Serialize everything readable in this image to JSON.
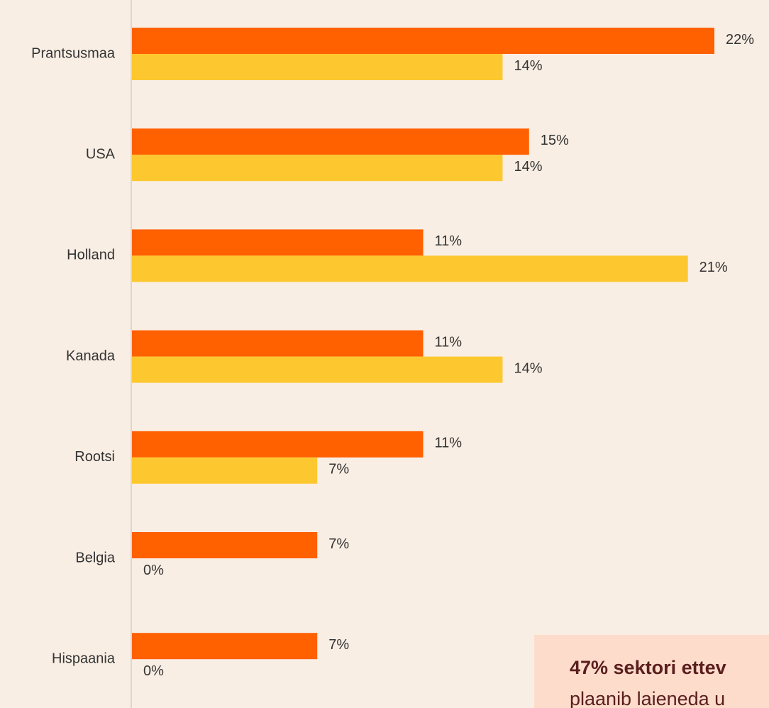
{
  "chart_data": {
    "type": "bar",
    "orientation": "horizontal",
    "categories": [
      "Prantsusmaa",
      "USA",
      "Holland",
      "Kanada",
      "Rootsi",
      "Belgia",
      "Hispaania"
    ],
    "series": [
      {
        "color": "#ff6000",
        "values": [
          22,
          15,
          11,
          11,
          11,
          7,
          7
        ],
        "value_labels": [
          "22%",
          "15%",
          "11%",
          "11%",
          "11%",
          "7%",
          "7%"
        ]
      },
      {
        "color": "#fdc82f",
        "values": [
          14,
          14,
          21,
          14,
          7,
          0,
          0
        ],
        "value_labels": [
          "14%",
          "14%",
          "21%",
          "14%",
          "7%",
          "0%",
          "0%"
        ]
      }
    ],
    "annotation": {
      "lines": [
        "47% sektori ettev",
        "plaanib laieneda u"
      ]
    }
  }
}
